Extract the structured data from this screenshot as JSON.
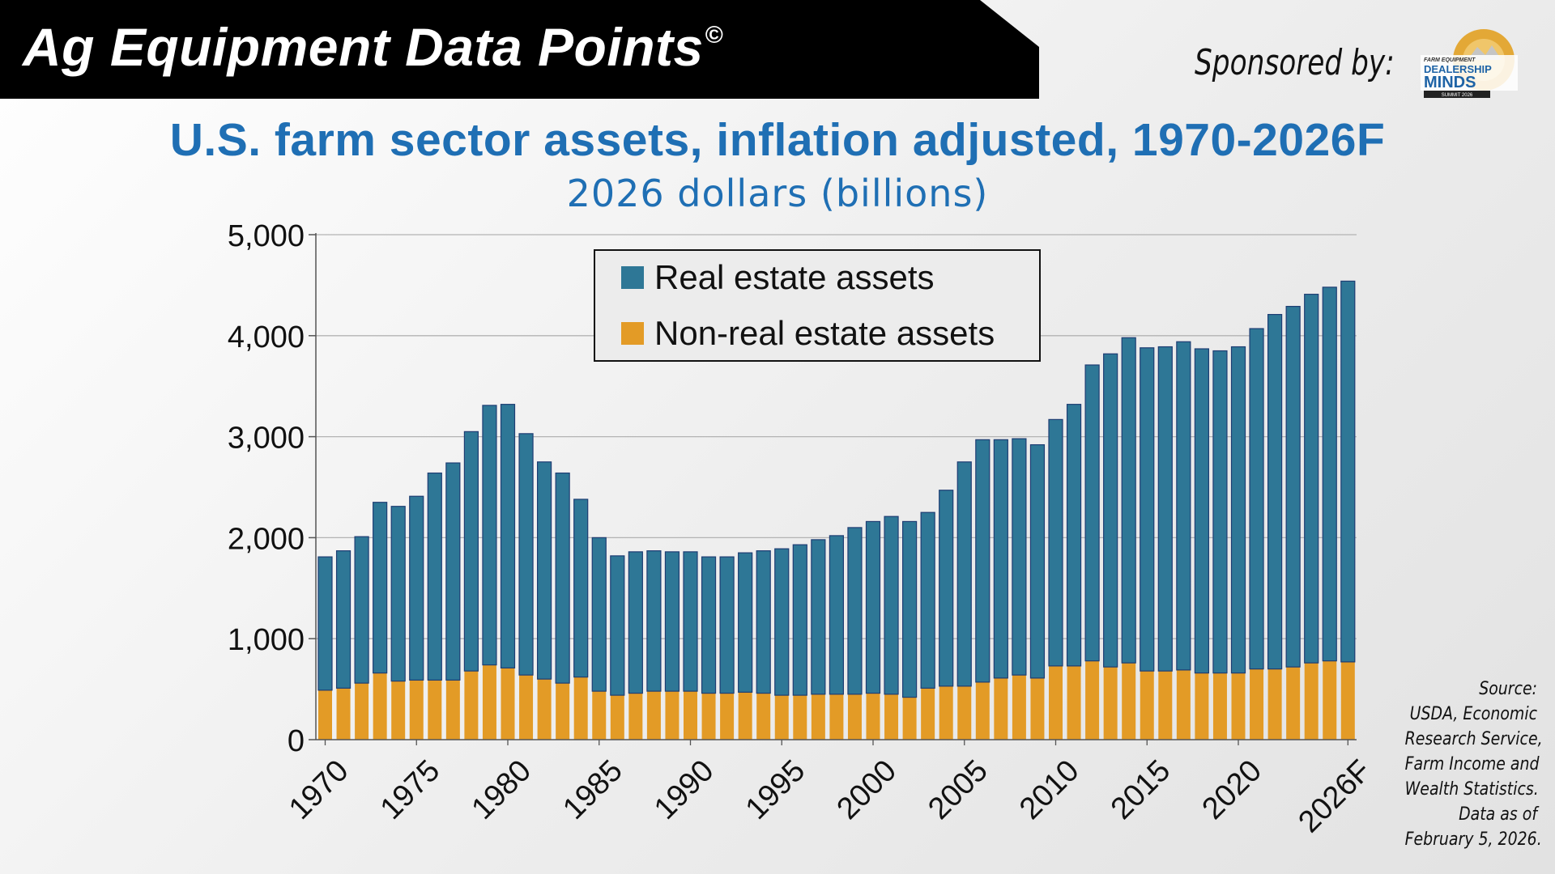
{
  "header": {
    "banner_title": "Ag Equipment Data Points",
    "copyright_mark": "©",
    "sponsor_label": "Sponsored by:",
    "sponsor_logo": {
      "icon": "dealership-minds-logo",
      "line1": "FARM EQUIPMENT",
      "line2": "DEALERSHIP",
      "line3": "MINDS",
      "line4": "SUMMIT 2026"
    }
  },
  "colors": {
    "title": "#1f6fb4",
    "real_estate": "#2e7796",
    "non_real_estate": "#e39b26",
    "bar_outline": "#1e3d73"
  },
  "chart_data": {
    "type": "bar",
    "stacked": true,
    "title": "U.S. farm sector assets, inflation adjusted, 1970-2026F",
    "subtitle": "2026 dollars (billions)",
    "xlabel": "",
    "ylabel": "",
    "ylim": [
      0,
      5000
    ],
    "yticks": [
      "0",
      "1,000",
      "2,000",
      "3,000",
      "4,000",
      "5,000"
    ],
    "grid": true,
    "legend_position": "top-center",
    "x_tick_labels": [
      {
        "index": 0,
        "label": "1970"
      },
      {
        "index": 5,
        "label": "1975"
      },
      {
        "index": 10,
        "label": "1980"
      },
      {
        "index": 15,
        "label": "1985"
      },
      {
        "index": 20,
        "label": "1990"
      },
      {
        "index": 25,
        "label": "1995"
      },
      {
        "index": 30,
        "label": "2000"
      },
      {
        "index": 35,
        "label": "2005"
      },
      {
        "index": 40,
        "label": "2010"
      },
      {
        "index": 45,
        "label": "2015"
      },
      {
        "index": 50,
        "label": "2020"
      },
      {
        "index": 56,
        "label": "2026F"
      }
    ],
    "categories": [
      "1970",
      "1971",
      "1972",
      "1973",
      "1974",
      "1975",
      "1976",
      "1977",
      "1978",
      "1979",
      "1980",
      "1981",
      "1982",
      "1983",
      "1984",
      "1985",
      "1986",
      "1987",
      "1988",
      "1989",
      "1990",
      "1991",
      "1992",
      "1993",
      "1994",
      "1995",
      "1996",
      "1997",
      "1998",
      "1999",
      "2000",
      "2001",
      "2002",
      "2003",
      "2004",
      "2005",
      "2006",
      "2007",
      "2008",
      "2009",
      "2010",
      "2011",
      "2012",
      "2013",
      "2014",
      "2015",
      "2016",
      "2017",
      "2018",
      "2019",
      "2020",
      "2021",
      "2022",
      "2023",
      "2024",
      "2025",
      "2026F"
    ],
    "series": [
      {
        "name": "Non-real estate assets",
        "values": [
          490,
          510,
          560,
          660,
          580,
          590,
          590,
          590,
          680,
          740,
          710,
          640,
          600,
          560,
          620,
          480,
          440,
          460,
          480,
          480,
          480,
          460,
          460,
          470,
          460,
          440,
          440,
          450,
          450,
          450,
          460,
          450,
          420,
          510,
          530,
          530,
          570,
          610,
          640,
          610,
          730,
          730,
          780,
          720,
          760,
          680,
          680,
          690,
          660,
          660,
          660,
          700,
          700,
          720,
          760,
          780,
          770
        ]
      },
      {
        "name": "Real estate assets",
        "values": [
          1320,
          1360,
          1450,
          1690,
          1730,
          1820,
          2050,
          2150,
          2370,
          2570,
          2610,
          2390,
          2150,
          2080,
          1760,
          1520,
          1380,
          1400,
          1390,
          1380,
          1380,
          1350,
          1350,
          1380,
          1410,
          1450,
          1490,
          1530,
          1570,
          1650,
          1700,
          1760,
          1740,
          1740,
          1940,
          2220,
          2400,
          2360,
          2340,
          2310,
          2440,
          2590,
          2930,
          3100,
          3220,
          3200,
          3210,
          3250,
          3210,
          3190,
          3230,
          3370,
          3510,
          3570,
          3650,
          3700,
          3770
        ]
      }
    ]
  },
  "source": {
    "lines": [
      "Source:",
      "USDA, Economic",
      "Research Service,",
      "Farm Income and",
      "Wealth Statistics.",
      "Data as of",
      "February 5, 2026."
    ]
  }
}
